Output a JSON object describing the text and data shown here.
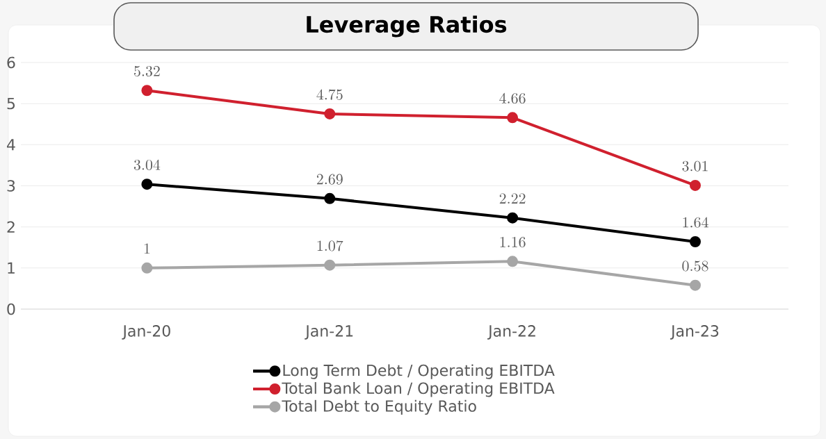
{
  "chart_data": {
    "type": "line",
    "title": "Leverage Ratios",
    "categories": [
      "Jan-20",
      "Jan-21",
      "Jan-22",
      "Jan-23"
    ],
    "series": [
      {
        "name": "Long Term Debt / Operating EBITDA",
        "color": "#000000",
        "values": [
          3.04,
          2.69,
          2.22,
          1.64
        ]
      },
      {
        "name": "Total Bank Loan / Operating EBITDA",
        "color": "#d0202e",
        "values": [
          5.32,
          4.75,
          4.66,
          3.01
        ]
      },
      {
        "name": "Total Debt to Equity Ratio",
        "color": "#a6a6a6",
        "values": [
          1,
          1.07,
          1.16,
          0.58
        ]
      }
    ],
    "ylim": [
      0,
      6
    ],
    "yticks": [
      0,
      1,
      2,
      3,
      4,
      5,
      6
    ],
    "grid": "y",
    "legend": "bottom",
    "marker": "circle",
    "line_style": "solid",
    "data_labels": true
  }
}
